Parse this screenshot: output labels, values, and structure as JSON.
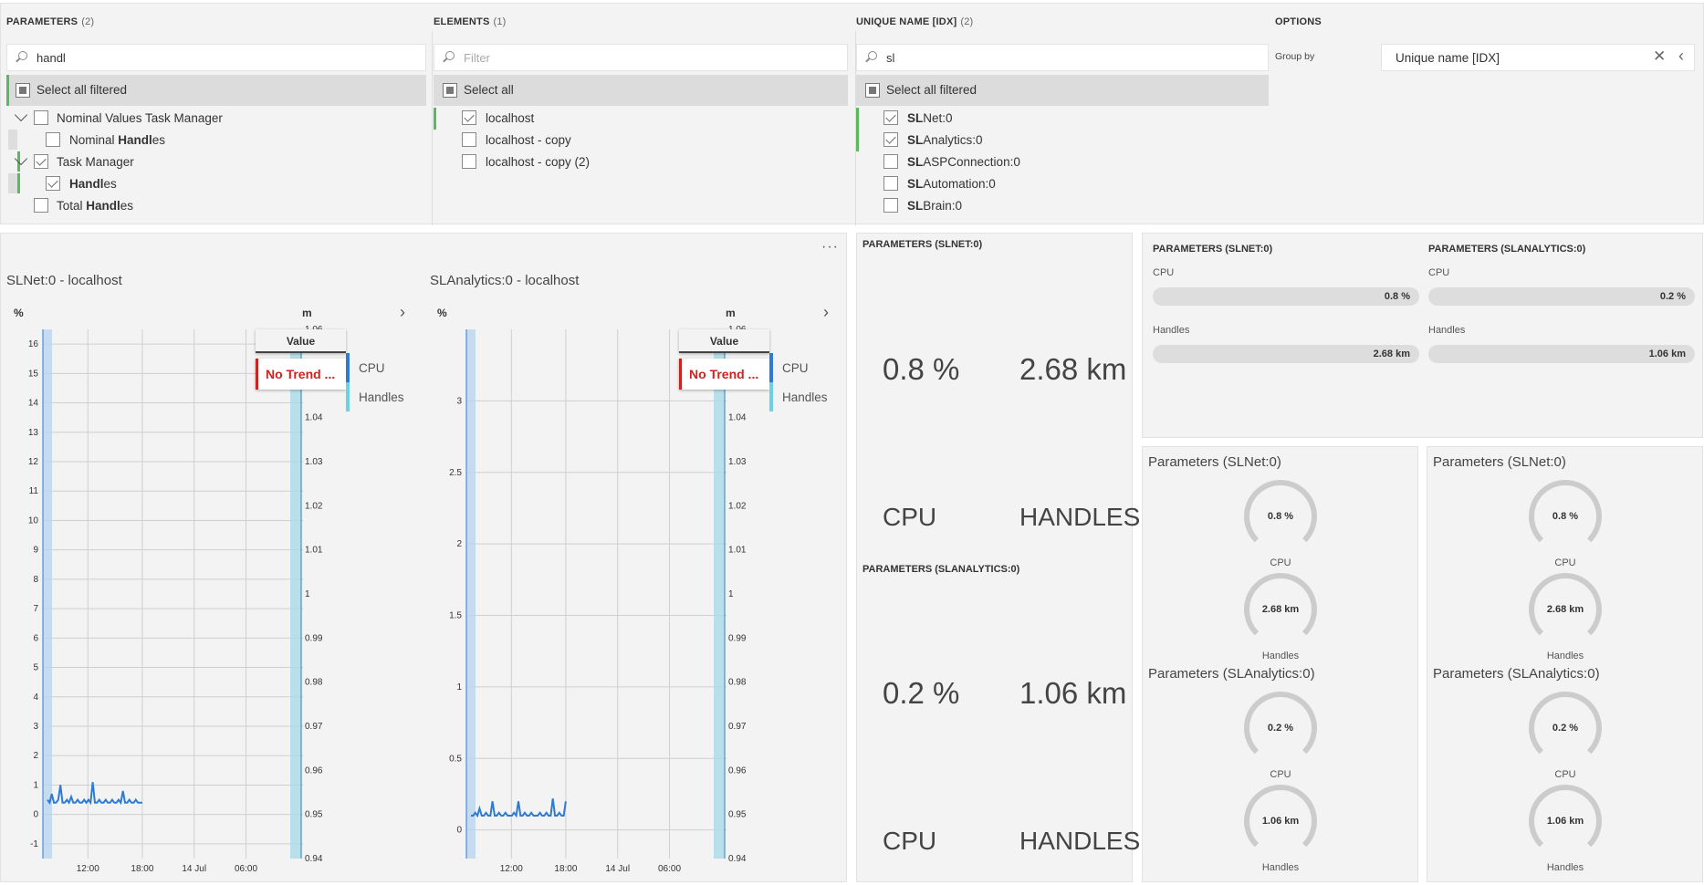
{
  "filters": {
    "parameters": {
      "title": "PARAMETERS",
      "count": "(2)",
      "search_value": "handl",
      "select_all": "Select all filtered",
      "items": [
        {
          "pre": "Nominal Values Task Manager",
          "bold": "",
          "post": ""
        },
        {
          "pre": "Nominal ",
          "bold": "Handl",
          "post": "es"
        },
        {
          "pre": "Task Manager",
          "bold": "",
          "post": ""
        },
        {
          "pre": "",
          "bold": "Handl",
          "post": "es"
        },
        {
          "pre": "Total ",
          "bold": "Handl",
          "post": "es"
        }
      ]
    },
    "elements": {
      "title": "ELEMENTS",
      "count": "(1)",
      "search_placeholder": "Filter",
      "select_all": "Select all",
      "items": [
        "localhost",
        "localhost - copy",
        "localhost - copy (2)"
      ]
    },
    "unique_name": {
      "title": "UNIQUE NAME [IDX]",
      "count": "(2)",
      "search_value": "sl",
      "select_all": "Select all filtered",
      "items": [
        {
          "bold": "SL",
          "post": "Net:0"
        },
        {
          "bold": "SL",
          "post": "Analytics:0"
        },
        {
          "bold": "SL",
          "post": "ASPConnection:0"
        },
        {
          "bold": "SL",
          "post": "Automation:0"
        },
        {
          "bold": "SL",
          "post": "Brain:0"
        }
      ]
    },
    "options": {
      "title": "OPTIONS",
      "group_by_label": "Group by",
      "group_by_value": "Unique name [IDX]"
    }
  },
  "trends": {
    "menu_icon": "more-horizontal-icon",
    "legend_header": "Value",
    "legend_no_trend": "No Trend ...",
    "series_labels": [
      "CPU",
      "Handles"
    ],
    "charts": [
      {
        "title": "SLNet:0 - localhost",
        "left_unit": "%",
        "right_unit": "m"
      },
      {
        "title": "SLAnalytics:0 - localhost",
        "left_unit": "%",
        "right_unit": "m"
      }
    ]
  },
  "chart_data": [
    {
      "type": "line",
      "title": "SLNet:0 - localhost",
      "ylabel": "%",
      "y2label": "m",
      "ylim": [
        -1.5,
        16.5
      ],
      "y2lim": [
        0.94,
        1.06
      ],
      "yticks": [
        "-1",
        "0",
        "1",
        "2",
        "3",
        "4",
        "5",
        "6",
        "7",
        "8",
        "9",
        "10",
        "11",
        "12",
        "13",
        "14",
        "15",
        "16"
      ],
      "y2ticks": [
        "0.94",
        "0.95",
        "0.96",
        "0.97",
        "0.98",
        "0.99",
        "1",
        "1.01",
        "1.02",
        "1.03",
        "1.04",
        "1.05",
        "1.06"
      ],
      "xticks": [
        "12:00",
        "18:00",
        "14 Jul",
        "06:00"
      ],
      "series": [
        {
          "name": "CPU",
          "values": [
            0.5,
            0.4,
            0.7,
            0.4,
            0.4,
            0.5,
            1.0,
            0.4,
            0.4,
            0.5,
            0.4,
            0.6,
            0.4,
            0.4,
            0.5,
            0.4,
            0.4,
            0.5,
            0.4,
            0.5,
            0.4,
            1.1,
            0.4,
            0.4,
            0.5,
            0.4,
            0.4,
            0.5,
            0.4,
            0.4,
            0.5,
            0.4,
            0.4,
            0.5,
            0.4,
            0.8,
            0.4,
            0.4,
            0.5,
            0.4,
            0.4,
            0.5,
            0.4,
            0.4,
            0.4
          ]
        }
      ]
    },
    {
      "type": "line",
      "title": "SLAnalytics:0 - localhost",
      "ylabel": "%",
      "y2label": "m",
      "ylim": [
        -0.2,
        3.5
      ],
      "y2lim": [
        0.94,
        1.06
      ],
      "yticks": [
        "0",
        "0.5",
        "1",
        "1.5",
        "2",
        "2.5",
        "3"
      ],
      "y2ticks": [
        "0.94",
        "0.95",
        "0.96",
        "0.97",
        "0.98",
        "0.99",
        "1",
        "1.01",
        "1.02",
        "1.03",
        "1.04",
        "1.05",
        "1.06"
      ],
      "xticks": [
        "12:00",
        "18:00",
        "14 Jul",
        "06:00"
      ],
      "series": [
        {
          "name": "CPU",
          "values": [
            0.1,
            0.1,
            0.12,
            0.1,
            0.15,
            0.1,
            0.1,
            0.12,
            0.1,
            0.1,
            0.2,
            0.1,
            0.1,
            0.12,
            0.1,
            0.1,
            0.12,
            0.1,
            0.1,
            0.1,
            0.12,
            0.1,
            0.2,
            0.1,
            0.1,
            0.12,
            0.1,
            0.1,
            0.12,
            0.1,
            0.1,
            0.1,
            0.12,
            0.1,
            0.1,
            0.12,
            0.1,
            0.1,
            0.22,
            0.1,
            0.1,
            0.12,
            0.1,
            0.1,
            0.2
          ]
        }
      ]
    }
  ],
  "kpi_large": [
    {
      "title": "PARAMETERS (SLNET:0)",
      "cpu_value": "0.8 %",
      "handles_value": "2.68 km",
      "cpu_label": "CPU",
      "handles_label": "HANDLES"
    },
    {
      "title": "PARAMETERS (SLANALYTICS:0)",
      "cpu_value": "0.2 %",
      "handles_value": "1.06 km",
      "cpu_label": "CPU",
      "handles_label": "HANDLES"
    }
  ],
  "kpi_bars": [
    {
      "title": "PARAMETERS (SLNET:0)",
      "cpu_label": "CPU",
      "cpu_value": "0.8 %",
      "handles_label": "Handles",
      "handles_value": "2.68 km"
    },
    {
      "title": "PARAMETERS (SLANALYTICS:0)",
      "cpu_label": "CPU",
      "cpu_value": "0.2 %",
      "handles_label": "Handles",
      "handles_value": "1.06 km"
    }
  ],
  "gauges": [
    {
      "title": "Parameters (SLNet:0)",
      "cpu_value": "0.8 %",
      "cpu_label": "CPU",
      "handles_value": "2.68 km",
      "handles_label": "Handles"
    },
    {
      "title": "Parameters (SLAnalytics:0)",
      "cpu_value": "0.2 %",
      "cpu_label": "CPU",
      "handles_value": "1.06 km",
      "handles_label": "Handles"
    }
  ],
  "colors": {
    "accent_green": "#5cb85c",
    "series_blue": "#2f7bd4",
    "band_blue": "#b9d4ef",
    "band_cyan": "#a9dbe8",
    "no_trend_red": "#d0201f"
  }
}
